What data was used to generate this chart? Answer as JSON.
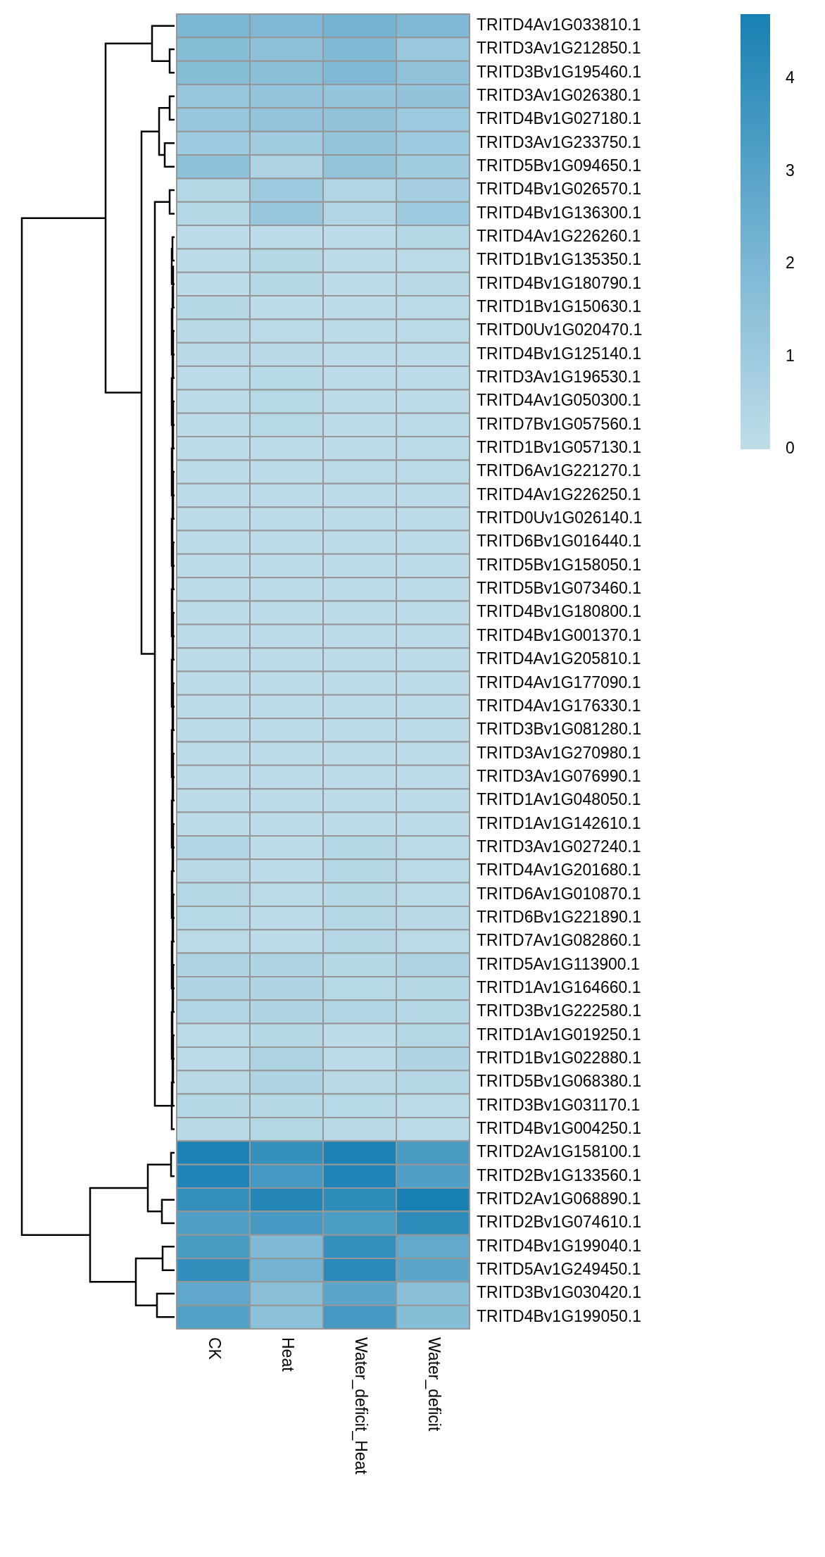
{
  "chart_data": {
    "type": "heatmap",
    "categories": [
      "CK",
      "Heat",
      "Water_deficit_Heat",
      "Water_deficit"
    ],
    "y_categories": [
      "TRITD4Av1G033810.1",
      "TRITD3Av1G212850.1",
      "TRITD3Bv1G195460.1",
      "TRITD3Av1G026380.1",
      "TRITD4Bv1G027180.1",
      "TRITD3Av1G233750.1",
      "TRITD5Bv1G094650.1",
      "TRITD4Bv1G026570.1",
      "TRITD4Bv1G136300.1",
      "TRITD4Av1G226260.1",
      "TRITD1Bv1G135350.1",
      "TRITD4Bv1G180790.1",
      "TRITD1Bv1G150630.1",
      "TRITD0Uv1G020470.1",
      "TRITD4Bv1G125140.1",
      "TRITD3Av1G196530.1",
      "TRITD4Av1G050300.1",
      "TRITD7Bv1G057560.1",
      "TRITD1Bv1G057130.1",
      "TRITD6Av1G221270.1",
      "TRITD4Av1G226250.1",
      "TRITD0Uv1G026140.1",
      "TRITD6Bv1G016440.1",
      "TRITD5Bv1G158050.1",
      "TRITD5Bv1G073460.1",
      "TRITD4Bv1G180800.1",
      "TRITD4Bv1G001370.1",
      "TRITD4Av1G205810.1",
      "TRITD4Av1G177090.1",
      "TRITD4Av1G176330.1",
      "TRITD3Bv1G081280.1",
      "TRITD3Av1G270980.1",
      "TRITD3Av1G076990.1",
      "TRITD1Av1G048050.1",
      "TRITD1Av1G142610.1",
      "TRITD3Av1G027240.1",
      "TRITD4Av1G201680.1",
      "TRITD6Av1G010870.1",
      "TRITD6Bv1G221890.1",
      "TRITD7Av1G082860.1",
      "TRITD5Av1G113900.1",
      "TRITD1Av1G164660.1",
      "TRITD3Bv1G222580.1",
      "TRITD1Av1G019250.1",
      "TRITD1Bv1G022880.1",
      "TRITD5Bv1G068380.1",
      "TRITD3Bv1G031170.1",
      "TRITD4Bv1G004250.1",
      "TRITD2Av1G158100.1",
      "TRITD2Bv1G133560.1",
      "TRITD2Av1G068890.1",
      "TRITD2Bv1G074610.1",
      "TRITD4Bv1G199040.1",
      "TRITD5Av1G249450.1",
      "TRITD3Bv1G030420.1",
      "TRITD4Bv1G199050.1"
    ],
    "cells": [
      [
        2.0,
        1.9,
        2.2,
        1.9
      ],
      [
        1.7,
        1.5,
        1.9,
        1.1
      ],
      [
        1.7,
        1.6,
        1.9,
        1.4
      ],
      [
        1.2,
        1.3,
        1.25,
        1.35
      ],
      [
        1.2,
        1.3,
        1.35,
        1.0
      ],
      [
        1.0,
        0.9,
        1.3,
        1.0
      ],
      [
        1.5,
        0.6,
        1.3,
        0.9
      ],
      [
        0.3,
        1.0,
        0.4,
        0.8
      ],
      [
        0.3,
        1.2,
        0.4,
        1.0
      ],
      [
        0.1,
        0.1,
        0.1,
        0.3
      ],
      [
        0.1,
        0.3,
        0.1,
        0.15
      ],
      [
        0.1,
        0.3,
        0.1,
        0.2
      ],
      [
        0.3,
        0.1,
        0.1,
        0.15
      ],
      [
        0.2,
        0.15,
        0.1,
        0.15
      ],
      [
        0.2,
        0.2,
        0.1,
        0.15
      ],
      [
        0.15,
        0.25,
        0.1,
        0.15
      ],
      [
        0.1,
        0.25,
        0.1,
        0.1
      ],
      [
        0.1,
        0.25,
        0.1,
        0.15
      ],
      [
        0.1,
        0.1,
        0.1,
        0.15
      ],
      [
        0.1,
        0.1,
        0.15,
        0.15
      ],
      [
        0.1,
        0.1,
        0.1,
        0.1
      ],
      [
        0.1,
        0.1,
        0.1,
        0.1
      ],
      [
        0.1,
        0.1,
        0.1,
        0.1
      ],
      [
        0.1,
        0.1,
        0.1,
        0.1
      ],
      [
        0.1,
        0.1,
        0.1,
        0.1
      ],
      [
        0.1,
        0.1,
        0.1,
        0.1
      ],
      [
        0.1,
        0.1,
        0.1,
        0.1
      ],
      [
        0.1,
        0.1,
        0.1,
        0.1
      ],
      [
        0.1,
        0.1,
        0.1,
        0.1
      ],
      [
        0.1,
        0.1,
        0.1,
        0.1
      ],
      [
        0.1,
        0.1,
        0.1,
        0.1
      ],
      [
        0.1,
        0.1,
        0.1,
        0.1
      ],
      [
        0.1,
        0.1,
        0.1,
        0.1
      ],
      [
        0.1,
        0.1,
        0.1,
        0.1
      ],
      [
        0.1,
        0.1,
        0.1,
        0.1
      ],
      [
        0.4,
        0.1,
        0.3,
        0.15
      ],
      [
        0.2,
        0.1,
        0.3,
        0.15
      ],
      [
        0.3,
        0.15,
        0.3,
        0.15
      ],
      [
        0.25,
        0.1,
        0.3,
        0.2
      ],
      [
        0.15,
        0.1,
        0.3,
        0.15
      ],
      [
        0.5,
        0.5,
        0.3,
        0.45
      ],
      [
        0.5,
        0.45,
        0.25,
        0.3
      ],
      [
        0.4,
        0.45,
        0.4,
        0.3
      ],
      [
        0.15,
        0.3,
        0.1,
        0.35
      ],
      [
        0.15,
        0.55,
        0.1,
        0.45
      ],
      [
        0.2,
        0.45,
        0.2,
        0.3
      ],
      [
        0.3,
        0.3,
        0.25,
        0.15
      ],
      [
        0.2,
        0.35,
        0.2,
        0.15
      ],
      [
        4.6,
        3.9,
        4.6,
        3.4
      ],
      [
        4.5,
        3.5,
        4.5,
        3.2
      ],
      [
        3.9,
        4.4,
        4.1,
        4.7
      ],
      [
        3.2,
        3.5,
        3.3,
        4.1
      ],
      [
        3.4,
        1.9,
        3.9,
        2.7
      ],
      [
        4.0,
        2.2,
        4.2,
        2.9
      ],
      [
        2.8,
        1.6,
        2.9,
        1.6
      ],
      [
        3.1,
        1.5,
        3.5,
        1.7
      ]
    ],
    "clim": [
      0,
      4.7
    ],
    "cticks": [
      0,
      1,
      2,
      3,
      4
    ]
  }
}
